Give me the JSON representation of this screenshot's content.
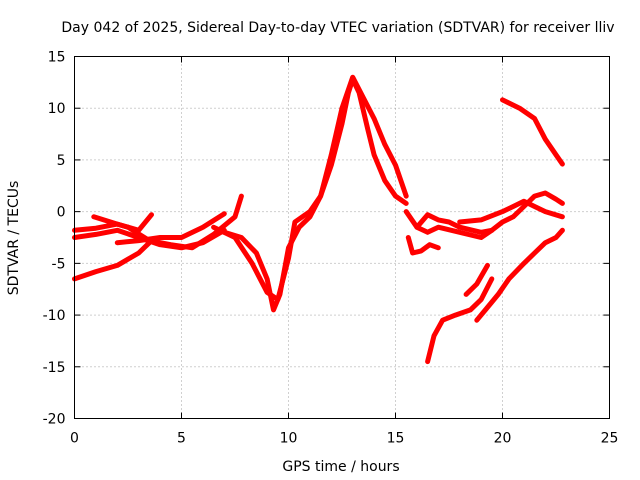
{
  "chart_data": {
    "type": "scatter",
    "title": "Day 042 of 2025, Sidereal Day-to-day VTEC variation (SDTVAR) for receiver lliv",
    "xlabel": "GPS time / hours",
    "ylabel": "SDTVAR / TECUs",
    "xlim": [
      0,
      25
    ],
    "ylim": [
      -20,
      15
    ],
    "xticks": [
      0,
      5,
      10,
      15,
      20,
      25
    ],
    "yticks": [
      -20,
      -15,
      -10,
      -5,
      0,
      5,
      10,
      15
    ],
    "xtick_labels": [
      "0",
      "5",
      "10",
      "15",
      "20",
      "25"
    ],
    "ytick_labels": [
      "-20",
      "-15",
      "-10",
      "-5",
      "0",
      "5",
      "10",
      "15"
    ],
    "grid": true,
    "marker_color": "#ff0000",
    "series": [
      {
        "x": [
          0,
          1,
          2,
          3,
          3.5
        ],
        "y": [
          -6.5,
          -5.8,
          -5.2,
          -4,
          -3
        ]
      },
      {
        "x": [
          0,
          1,
          2,
          2.5,
          3.5,
          4.5,
          5.5,
          6.5,
          7.5,
          7.8
        ],
        "y": [
          -1.8,
          -1.6,
          -1.2,
          -1.5,
          -2.8,
          -3.2,
          -3.5,
          -2.2,
          -0.5,
          1.5
        ]
      },
      {
        "x": [
          0,
          1,
          2,
          3,
          4,
          5,
          6,
          7
        ],
        "y": [
          -2.5,
          -2.2,
          -1.8,
          -2.5,
          -3.2,
          -3.5,
          -3,
          -1.8
        ]
      },
      {
        "x": [
          0.9,
          2,
          3,
          3.6
        ],
        "y": [
          -0.5,
          -1.2,
          -1.8,
          -0.3
        ]
      },
      {
        "x": [
          2,
          3,
          4,
          5,
          6,
          7
        ],
        "y": [
          -3,
          -2.8,
          -2.5,
          -2.5,
          -1.5,
          -0.2
        ]
      },
      {
        "x": [
          7,
          7.8,
          8.5,
          9,
          9.3,
          9.6,
          10,
          10.5,
          11,
          11.5,
          12,
          12.5,
          12.8,
          13,
          13.3,
          13.7,
          14,
          14.5,
          15,
          15.5
        ],
        "y": [
          -2,
          -2.5,
          -4,
          -6.5,
          -9.5,
          -8,
          -3.5,
          -1.5,
          -0.5,
          1.5,
          4.5,
          8.5,
          11.5,
          12.8,
          11.5,
          8,
          5.5,
          3,
          1.5,
          0.8
        ]
      },
      {
        "x": [
          6.5,
          7.5,
          8.3,
          9,
          9.5,
          10,
          10.3,
          11,
          11.5,
          12,
          12.5,
          13,
          13.5,
          14,
          14.5,
          15,
          15.5
        ],
        "y": [
          -1.5,
          -2.5,
          -5,
          -7.8,
          -8.5,
          -4.5,
          -1,
          0,
          1.5,
          5.5,
          10,
          13,
          11,
          9,
          6.5,
          4.5,
          1.5
        ]
      },
      {
        "x": [
          15.5,
          16,
          16.5,
          17,
          17.5,
          18,
          19,
          19.5
        ],
        "y": [
          0,
          -1.5,
          -0.3,
          -0.8,
          -1,
          -1.5,
          -2,
          -1.8
        ]
      },
      {
        "x": [
          16,
          16.5,
          17,
          18,
          19,
          19.5,
          20,
          20.5,
          21,
          21.5,
          22,
          22.5,
          22.8
        ],
        "y": [
          -1.5,
          -2,
          -1.5,
          -2,
          -2.5,
          -1.8,
          -1,
          -0.5,
          0.5,
          1.5,
          1.8,
          1.2,
          0.8
        ]
      },
      {
        "x": [
          18,
          19,
          20,
          20.5,
          21,
          21.5,
          22,
          22.8
        ],
        "y": [
          -1,
          -0.8,
          0,
          0.5,
          1,
          0.5,
          0,
          -0.5
        ]
      },
      {
        "x": [
          15.6,
          15.8,
          16.2,
          16.6,
          17
        ],
        "y": [
          -2.5,
          -4,
          -3.8,
          -3.2,
          -3.5
        ]
      },
      {
        "x": [
          16.5,
          16.8,
          17.2,
          17.8,
          18.5,
          19,
          19.5
        ],
        "y": [
          -14.5,
          -12,
          -10.5,
          -10,
          -9.5,
          -8.5,
          -6.5
        ]
      },
      {
        "x": [
          18.3,
          18.8,
          19.3
        ],
        "y": [
          -8,
          -7,
          -5.2
        ]
      },
      {
        "x": [
          18.8,
          19.2,
          19.8,
          20.3,
          21,
          21.5,
          22,
          22.5,
          22.8
        ],
        "y": [
          -10.5,
          -9.5,
          -8,
          -6.5,
          -5,
          -4,
          -3,
          -2.5,
          -1.8
        ]
      },
      {
        "x": [
          20,
          20.8,
          21.5,
          22,
          22.5,
          22.8
        ],
        "y": [
          10.8,
          10,
          9,
          7,
          5.5,
          4.6
        ]
      }
    ]
  }
}
